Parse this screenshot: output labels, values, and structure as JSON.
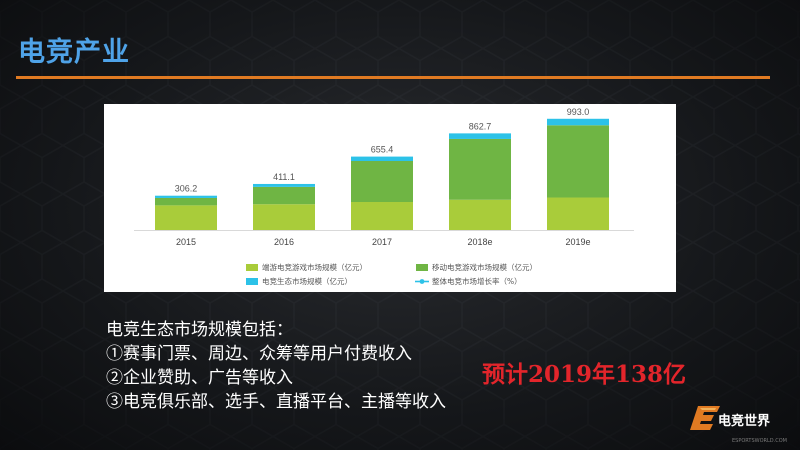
{
  "header": {
    "title": "电竞产业"
  },
  "chart_data": {
    "type": "bar",
    "stacked": true,
    "categories": [
      "2015",
      "2016",
      "2017",
      "2018e",
      "2019e"
    ],
    "series": [
      {
        "name": "端游电竞游戏市场规模（亿元）",
        "color": "#a9cc3a",
        "values": [
          220,
          230,
          250,
          270,
          290
        ]
      },
      {
        "name": "移动电竞游戏市场规模（亿元）",
        "color": "#6fb544",
        "values": [
          66,
          155,
          366,
          543,
          645
        ]
      },
      {
        "name": "电竞生态市场规模（亿元）",
        "color": "#2cc2e8",
        "values": [
          20.2,
          26.1,
          39.4,
          49.7,
          58.0
        ]
      }
    ],
    "totals": [
      306.2,
      411.1,
      655.4,
      862.7,
      993.0
    ],
    "total_labels": [
      "306.2",
      "411.1",
      "655.4",
      "862.7",
      "993.0"
    ],
    "line_series": {
      "name": "整体电竞市场增长率（%）",
      "color": "#2cc2e8"
    },
    "legend_position": "bottom",
    "ylim": [
      0,
      1000
    ],
    "grid": false
  },
  "description": {
    "lines": [
      "电竞生态市场规模包括：",
      "①赛事门票、周边、众筹等用户付费收入",
      "②企业赞助、广告等收入",
      "③电竞俱乐部、选手、直播平台、主播等收入"
    ]
  },
  "forecast": "预计2019年138亿",
  "logo": {
    "text": "电竞世界",
    "sub": "ESPORTSWORLD.COM"
  }
}
